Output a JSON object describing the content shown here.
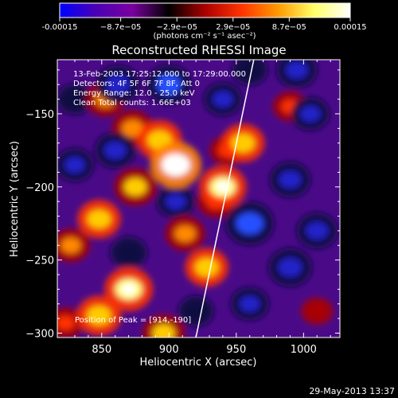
{
  "colorbar": {
    "tick_labels": [
      "-0.00015",
      "−8.7e−05",
      "−2.9e−05",
      "2.9e−05",
      "8.7e−05",
      "0.00015"
    ],
    "ticks": [
      -0.00015,
      -8.7e-05,
      -2.9e-05,
      2.9e-05,
      8.7e-05,
      0.00015
    ],
    "range": [
      -0.00015,
      0.00015
    ],
    "units": "(photons cm⁻² s⁻¹ asec⁻²)",
    "colors": [
      "#0000ff",
      "#4b00b4",
      "#7a00a0",
      "#000000",
      "#aa0000",
      "#ff3300",
      "#ff9900",
      "#ffff66",
      "#ffffff"
    ]
  },
  "chart_data": {
    "type": "heatmap",
    "title": "Reconstructed RHESSI Image",
    "xlabel": "Heliocentric X (arcsec)",
    "ylabel": "Heliocentric Y (arcsec)",
    "xlim": [
      817,
      1027
    ],
    "ylim": [
      -303,
      -113
    ],
    "xticks": [
      850,
      900,
      950,
      1000
    ],
    "yticks": [
      -150,
      -200,
      -250,
      -300
    ],
    "annotations": [
      "13-Feb-2003 17:25:12.000 to 17:29:00.000",
      "Detectors: 4F 5F 6F 7F 8F, Att 0",
      "Energy Range: 12.0 - 25.0 keV",
      "Clean     Total counts: 1.66E+03"
    ],
    "peak_label": "Position of Peak = [914,-190]",
    "peak": [
      914,
      -190
    ],
    "limb_line": [
      [
        920,
        -303
      ],
      [
        963,
        -113
      ]
    ],
    "blobs": [
      {
        "x": 905,
        "y": -185,
        "v": 1.0
      },
      {
        "x": 893,
        "y": -168,
        "v": 0.75
      },
      {
        "x": 873,
        "y": -160,
        "v": 0.6
      },
      {
        "x": 853,
        "y": -140,
        "v": 0.55
      },
      {
        "x": 875,
        "y": -200,
        "v": 0.65
      },
      {
        "x": 848,
        "y": -222,
        "v": 0.7
      },
      {
        "x": 827,
        "y": -240,
        "v": 0.5
      },
      {
        "x": 912,
        "y": -232,
        "v": 0.55
      },
      {
        "x": 935,
        "y": -210,
        "v": 0.45
      },
      {
        "x": 943,
        "y": -175,
        "v": 0.35
      },
      {
        "x": 955,
        "y": -170,
        "v": 0.7
      },
      {
        "x": 940,
        "y": -200,
        "v": 0.85
      },
      {
        "x": 928,
        "y": -255,
        "v": 0.7
      },
      {
        "x": 870,
        "y": -270,
        "v": 0.9
      },
      {
        "x": 848,
        "y": -288,
        "v": 0.75
      },
      {
        "x": 896,
        "y": -300,
        "v": 0.65
      },
      {
        "x": 823,
        "y": -293,
        "v": 0.4
      },
      {
        "x": 990,
        "y": -145,
        "v": 0.35
      },
      {
        "x": 1010,
        "y": -285,
        "v": 0.25
      },
      {
        "x": 862,
        "y": -130,
        "v": -0.7
      },
      {
        "x": 830,
        "y": -140,
        "v": -0.4
      },
      {
        "x": 900,
        "y": -130,
        "v": -0.75
      },
      {
        "x": 940,
        "y": -140,
        "v": -0.5
      },
      {
        "x": 860,
        "y": -175,
        "v": -0.6
      },
      {
        "x": 830,
        "y": -185,
        "v": -0.5
      },
      {
        "x": 905,
        "y": -210,
        "v": -0.5
      },
      {
        "x": 870,
        "y": -245,
        "v": -0.45
      },
      {
        "x": 960,
        "y": -225,
        "v": -0.9
      },
      {
        "x": 990,
        "y": -255,
        "v": -0.7
      },
      {
        "x": 990,
        "y": -195,
        "v": -0.6
      },
      {
        "x": 1005,
        "y": -150,
        "v": -0.5
      },
      {
        "x": 1010,
        "y": -230,
        "v": -0.6
      },
      {
        "x": 960,
        "y": -280,
        "v": -0.5
      },
      {
        "x": 920,
        "y": -285,
        "v": -0.4
      },
      {
        "x": 995,
        "y": -120,
        "v": -0.6
      },
      {
        "x": 960,
        "y": -120,
        "v": -0.4
      }
    ]
  },
  "footer": {
    "timestamp": "29-May-2013 13:37"
  }
}
